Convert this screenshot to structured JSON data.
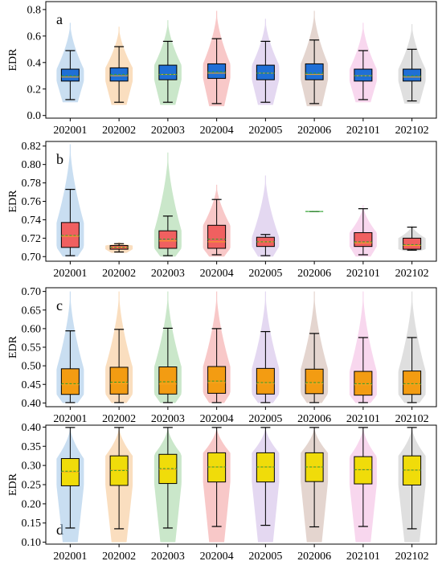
{
  "categories": [
    "202001",
    "202002",
    "202003",
    "202004",
    "202005",
    "202006",
    "202101",
    "202102"
  ],
  "violin_colors": [
    "#9dc3e6",
    "#f6c28b",
    "#9fd39f",
    "#f29a9a",
    "#cdb8e6",
    "#cdb2a8",
    "#f3b6e0",
    "#c4c4c4"
  ],
  "chart_data": [
    {
      "type": "box-violin",
      "panel_label": "a",
      "ylabel": "EDR",
      "ylim": [
        -0.02,
        0.86
      ],
      "ticks": [
        "0.0",
        "0.2",
        "0.4",
        "0.6",
        "0.8"
      ],
      "box_color": "#1f6fd6",
      "boxes": [
        {
          "category": "202001",
          "min": 0.12,
          "q1": 0.26,
          "median": 0.29,
          "mean": 0.3,
          "q3": 0.35,
          "max": 0.49,
          "vmin": 0.1,
          "vmax": 0.7
        },
        {
          "category": "202002",
          "min": 0.1,
          "q1": 0.26,
          "median": 0.3,
          "mean": 0.31,
          "q3": 0.36,
          "max": 0.52,
          "vmin": 0.08,
          "vmax": 0.67
        },
        {
          "category": "202003",
          "min": 0.1,
          "q1": 0.27,
          "median": 0.31,
          "mean": 0.31,
          "q3": 0.38,
          "max": 0.56,
          "vmin": 0.08,
          "vmax": 0.72
        },
        {
          "category": "202004",
          "min": 0.09,
          "q1": 0.28,
          "median": 0.32,
          "mean": 0.33,
          "q3": 0.39,
          "max": 0.58,
          "vmin": 0.07,
          "vmax": 0.79
        },
        {
          "category": "202005",
          "min": 0.1,
          "q1": 0.27,
          "median": 0.32,
          "mean": 0.32,
          "q3": 0.38,
          "max": 0.56,
          "vmin": 0.08,
          "vmax": 0.73
        },
        {
          "category": "202006",
          "min": 0.09,
          "q1": 0.27,
          "median": 0.31,
          "mean": 0.32,
          "q3": 0.39,
          "max": 0.57,
          "vmin": 0.07,
          "vmax": 0.79
        },
        {
          "category": "202101",
          "min": 0.12,
          "q1": 0.26,
          "median": 0.3,
          "mean": 0.3,
          "q3": 0.35,
          "max": 0.49,
          "vmin": 0.1,
          "vmax": 0.7
        },
        {
          "category": "202102",
          "min": 0.11,
          "q1": 0.26,
          "median": 0.29,
          "mean": 0.3,
          "q3": 0.35,
          "max": 0.5,
          "vmin": 0.09,
          "vmax": 0.69
        }
      ]
    },
    {
      "type": "box-violin",
      "panel_label": "b",
      "ylabel": "EDR",
      "ylim": [
        0.695,
        0.825
      ],
      "ticks": [
        "0.70",
        "0.72",
        "0.74",
        "0.76",
        "0.78",
        "0.80",
        "0.82"
      ],
      "box_color": "#f06060",
      "boxes": [
        {
          "category": "202001",
          "min": 0.701,
          "q1": 0.71,
          "median": 0.722,
          "mean": 0.723,
          "q3": 0.737,
          "max": 0.773,
          "vmin": 0.7,
          "vmax": 0.822
        },
        {
          "category": "202002",
          "min": 0.705,
          "q1": 0.708,
          "median": 0.71,
          "mean": 0.71,
          "q3": 0.712,
          "max": 0.714,
          "vmin": 0.704,
          "vmax": 0.716
        },
        {
          "category": "202003",
          "min": 0.701,
          "q1": 0.709,
          "median": 0.717,
          "mean": 0.719,
          "q3": 0.728,
          "max": 0.744,
          "vmin": 0.7,
          "vmax": 0.813
        },
        {
          "category": "202004",
          "min": 0.702,
          "q1": 0.709,
          "median": 0.716,
          "mean": 0.719,
          "q3": 0.734,
          "max": 0.762,
          "vmin": 0.7,
          "vmax": 0.778
        },
        {
          "category": "202005",
          "min": 0.701,
          "q1": 0.711,
          "median": 0.716,
          "mean": 0.716,
          "q3": 0.721,
          "max": 0.724,
          "vmin": 0.7,
          "vmax": 0.788
        },
        {
          "category": "202006",
          "min": 0.749,
          "q1": 0.749,
          "median": 0.749,
          "mean": 0.749,
          "q3": 0.749,
          "max": 0.749,
          "vmin": 0.749,
          "vmax": 0.749
        },
        {
          "category": "202101",
          "min": 0.702,
          "q1": 0.711,
          "median": 0.715,
          "mean": 0.716,
          "q3": 0.726,
          "max": 0.752,
          "vmin": 0.7,
          "vmax": 0.756
        },
        {
          "category": "202102",
          "min": 0.707,
          "q1": 0.708,
          "median": 0.712,
          "mean": 0.713,
          "q3": 0.72,
          "max": 0.732,
          "vmin": 0.706,
          "vmax": 0.734
        }
      ]
    },
    {
      "type": "box-violin",
      "panel_label": "c",
      "ylabel": "EDR",
      "ylim": [
        0.39,
        0.71
      ],
      "ticks": [
        "0.40",
        "0.45",
        "0.50",
        "0.55",
        "0.60",
        "0.65",
        "0.70"
      ],
      "box_color": "#f39c12",
      "boxes": [
        {
          "category": "202001",
          "min": 0.401,
          "q1": 0.423,
          "median": 0.449,
          "mean": 0.452,
          "q3": 0.492,
          "max": 0.594,
          "vmin": 0.4,
          "vmax": 0.7
        },
        {
          "category": "202002",
          "min": 0.401,
          "q1": 0.424,
          "median": 0.452,
          "mean": 0.456,
          "q3": 0.496,
          "max": 0.598,
          "vmin": 0.4,
          "vmax": 0.7
        },
        {
          "category": "202003",
          "min": 0.401,
          "q1": 0.424,
          "median": 0.451,
          "mean": 0.457,
          "q3": 0.497,
          "max": 0.601,
          "vmin": 0.4,
          "vmax": 0.7
        },
        {
          "category": "202004",
          "min": 0.401,
          "q1": 0.426,
          "median": 0.455,
          "mean": 0.459,
          "q3": 0.498,
          "max": 0.6,
          "vmin": 0.4,
          "vmax": 0.7
        },
        {
          "category": "202005",
          "min": 0.401,
          "q1": 0.424,
          "median": 0.452,
          "mean": 0.455,
          "q3": 0.493,
          "max": 0.592,
          "vmin": 0.4,
          "vmax": 0.7
        },
        {
          "category": "202006",
          "min": 0.401,
          "q1": 0.425,
          "median": 0.452,
          "mean": 0.455,
          "q3": 0.491,
          "max": 0.587,
          "vmin": 0.4,
          "vmax": 0.7
        },
        {
          "category": "202101",
          "min": 0.401,
          "q1": 0.421,
          "median": 0.449,
          "mean": 0.452,
          "q3": 0.485,
          "max": 0.576,
          "vmin": 0.4,
          "vmax": 0.7
        },
        {
          "category": "202102",
          "min": 0.401,
          "q1": 0.423,
          "median": 0.45,
          "mean": 0.452,
          "q3": 0.486,
          "max": 0.576,
          "vmin": 0.4,
          "vmax": 0.7
        }
      ]
    },
    {
      "type": "box-violin",
      "panel_label": "d",
      "ylabel": "EDR",
      "ylim": [
        0.095,
        0.405
      ],
      "ticks": [
        "0.10",
        "0.15",
        "0.20",
        "0.25",
        "0.30",
        "0.35",
        "0.40"
      ],
      "box_color": "#f0dc0a",
      "boxes": [
        {
          "category": "202001",
          "min": 0.137,
          "q1": 0.247,
          "median": 0.283,
          "mean": 0.285,
          "q3": 0.318,
          "max": 0.399,
          "vmin": 0.1,
          "vmax": 0.4
        },
        {
          "category": "202002",
          "min": 0.135,
          "q1": 0.248,
          "median": 0.288,
          "mean": 0.287,
          "q3": 0.325,
          "max": 0.399,
          "vmin": 0.1,
          "vmax": 0.4
        },
        {
          "category": "202003",
          "min": 0.137,
          "q1": 0.253,
          "median": 0.29,
          "mean": 0.292,
          "q3": 0.329,
          "max": 0.399,
          "vmin": 0.1,
          "vmax": 0.4
        },
        {
          "category": "202004",
          "min": 0.141,
          "q1": 0.257,
          "median": 0.296,
          "mean": 0.296,
          "q3": 0.333,
          "max": 0.399,
          "vmin": 0.1,
          "vmax": 0.4
        },
        {
          "category": "202005",
          "min": 0.144,
          "q1": 0.257,
          "median": 0.296,
          "mean": 0.296,
          "q3": 0.333,
          "max": 0.399,
          "vmin": 0.1,
          "vmax": 0.4
        },
        {
          "category": "202006",
          "min": 0.14,
          "q1": 0.258,
          "median": 0.296,
          "mean": 0.296,
          "q3": 0.333,
          "max": 0.399,
          "vmin": 0.1,
          "vmax": 0.4
        },
        {
          "category": "202101",
          "min": 0.141,
          "q1": 0.252,
          "median": 0.289,
          "mean": 0.289,
          "q3": 0.323,
          "max": 0.399,
          "vmin": 0.1,
          "vmax": 0.4
        },
        {
          "category": "202102",
          "min": 0.135,
          "q1": 0.249,
          "median": 0.288,
          "mean": 0.288,
          "q3": 0.325,
          "max": 0.399,
          "vmin": 0.1,
          "vmax": 0.4
        }
      ]
    }
  ]
}
